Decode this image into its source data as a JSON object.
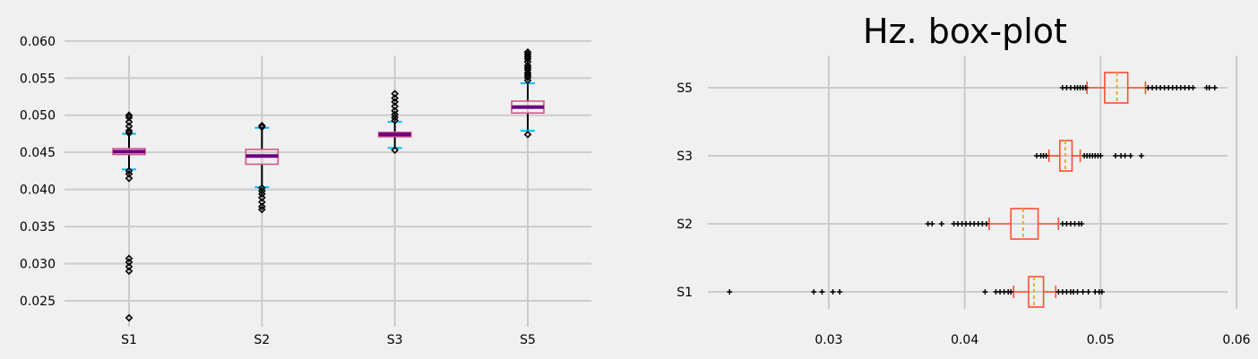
{
  "chart_data": [
    {
      "type": "box",
      "orientation": "vertical",
      "title": "",
      "xlabel": "",
      "ylabel": "",
      "categories": [
        "S1",
        "S2",
        "S3",
        "S5"
      ],
      "ylim": [
        0.0215,
        0.0607
      ],
      "yticks": [
        0.025,
        0.03,
        0.035,
        0.04,
        0.045,
        0.05,
        0.055,
        0.06
      ],
      "ytick_labels": [
        "0.025",
        "0.030",
        "0.035",
        "0.040",
        "0.045",
        "0.050",
        "0.055",
        "0.060"
      ],
      "grid": true,
      "colors": {
        "box": "#d0588a",
        "median": "#6a0080",
        "whisker": "#000000",
        "cap": "#00bfff",
        "flier": "#000000"
      },
      "boxes": [
        {
          "name": "S1",
          "whislo": 0.0427,
          "q1": 0.0447,
          "med": 0.0451,
          "q3": 0.0455,
          "whishi": 0.0475,
          "fliers": [
            0.0227,
            0.029,
            0.0296,
            0.0302,
            0.0307,
            0.0415,
            0.0421,
            0.0425,
            0.0476,
            0.0479,
            0.0485,
            0.0491,
            0.0497,
            0.05
          ]
        },
        {
          "name": "S2",
          "whislo": 0.0403,
          "q1": 0.0434,
          "med": 0.0445,
          "q3": 0.0454,
          "whishi": 0.0483,
          "fliers": [
            0.0373,
            0.0377,
            0.0383,
            0.0389,
            0.0394,
            0.0398,
            0.0402,
            0.0484,
            0.0486
          ]
        },
        {
          "name": "S3",
          "whislo": 0.0456,
          "q1": 0.0471,
          "med": 0.0474,
          "q3": 0.0477,
          "whishi": 0.0491,
          "fliers": [
            0.0453,
            0.0493,
            0.0497,
            0.0501,
            0.0506,
            0.0512,
            0.0518,
            0.0523,
            0.0529
          ]
        },
        {
          "name": "S5",
          "whislo": 0.0479,
          "q1": 0.0503,
          "med": 0.0511,
          "q3": 0.0519,
          "whishi": 0.0543,
          "fliers": [
            0.0474,
            0.0547,
            0.0551,
            0.0554,
            0.0557,
            0.0561,
            0.0564,
            0.0567,
            0.0572,
            0.0576,
            0.0579,
            0.0582,
            0.0585
          ]
        }
      ]
    },
    {
      "type": "box",
      "orientation": "horizontal",
      "title": "Hz. box-plot",
      "xlabel": "",
      "ylabel": "",
      "categories": [
        "S1",
        "S2",
        "S3",
        "S5"
      ],
      "xlim": [
        0.0211,
        0.06
      ],
      "xticks": [
        0.03,
        0.04,
        0.05,
        0.06
      ],
      "xtick_labels": [
        "0.03",
        "0.04",
        "0.05",
        "0.06"
      ],
      "grid": true,
      "colors": {
        "box": "#fc4f30",
        "median": "#e5ae38",
        "whisker": "#fc4f30",
        "cap": "#fc4f30",
        "flier": "#000000"
      },
      "boxes": [
        {
          "name": "S1",
          "whislo": 0.0436,
          "q1": 0.0447,
          "med": 0.0451,
          "q3": 0.0458,
          "whishi": 0.0467,
          "fliers": [
            0.0227,
            0.0289,
            0.0295,
            0.0303,
            0.0308,
            0.0415,
            0.0423,
            0.0426,
            0.0429,
            0.0432,
            0.0434,
            0.0469,
            0.0472,
            0.0475,
            0.0478,
            0.048,
            0.0483,
            0.0487,
            0.0491,
            0.0496,
            0.0499,
            0.0501
          ]
        },
        {
          "name": "S2",
          "whislo": 0.0418,
          "q1": 0.0434,
          "med": 0.0443,
          "q3": 0.0454,
          "whishi": 0.0469,
          "fliers": [
            0.0373,
            0.0376,
            0.0383,
            0.0392,
            0.0395,
            0.0398,
            0.0401,
            0.0404,
            0.0407,
            0.041,
            0.0413,
            0.0416,
            0.0472,
            0.0475,
            0.0478,
            0.0481,
            0.0484,
            0.0486
          ]
        },
        {
          "name": "S3",
          "whislo": 0.0462,
          "q1": 0.047,
          "med": 0.0474,
          "q3": 0.0479,
          "whishi": 0.0485,
          "fliers": [
            0.0453,
            0.0456,
            0.0458,
            0.046,
            0.0488,
            0.049,
            0.0492,
            0.0494,
            0.0496,
            0.0498,
            0.05,
            0.0511,
            0.0515,
            0.0518,
            0.0522,
            0.053
          ]
        },
        {
          "name": "S5",
          "whislo": 0.049,
          "q1": 0.0503,
          "med": 0.0512,
          "q3": 0.052,
          "whishi": 0.0533,
          "fliers": [
            0.0472,
            0.0475,
            0.0478,
            0.0481,
            0.0483,
            0.0485,
            0.0487,
            0.0489,
            0.0535,
            0.0538,
            0.0541,
            0.0544,
            0.0547,
            0.055,
            0.0553,
            0.0556,
            0.0559,
            0.0562,
            0.0565,
            0.0568,
            0.0578,
            0.058,
            0.0584
          ]
        }
      ]
    }
  ]
}
